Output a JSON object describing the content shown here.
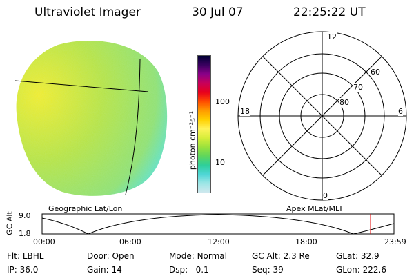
{
  "header": {
    "title": "Ultraviolet Imager",
    "date": "30 Jul 07",
    "time": "22:25:22 UT"
  },
  "colorbar": {
    "unit": "photon cm⁻²s⁻¹",
    "ticks": [
      {
        "label": "100",
        "value": 100
      },
      {
        "label": "10",
        "value": 10
      }
    ],
    "colors": [
      "#cfe8ee",
      "#9ee6e6",
      "#4fd6d6",
      "#2ecf9a",
      "#5fd65c",
      "#9be23c",
      "#d7ee3a",
      "#fff35a",
      "#ffd000",
      "#ff9a00",
      "#ff4a00",
      "#e8001c",
      "#c8005a",
      "#8a0088",
      "#3a0060",
      "#000033"
    ]
  },
  "left_panel": {
    "label": "Geographic Lat/Lon",
    "gradient": {
      "bright": "#f2ec2a",
      "mid": "#b7e342",
      "dim": "#8fe070",
      "edge": "#55e0d8"
    }
  },
  "polar_plot": {
    "label": "Apex MLat/MLT",
    "hour_labels": {
      "top": "12",
      "bottom": "0",
      "left": "18",
      "right": "6"
    },
    "lat_labels": [
      "60",
      "70",
      "80"
    ]
  },
  "timeline": {
    "ylabel": "GC Alt",
    "y_ticks": [
      "9.0",
      "1.8"
    ],
    "x_ticks": [
      "00:00",
      "06:00",
      "12:00",
      "18:00",
      "23:59"
    ],
    "marker_color": "#e00000",
    "marker_time": "22:25"
  },
  "info": {
    "filter_label": "Flt:",
    "filter_value": "LBHL",
    "door_label": "Door:",
    "door_value": "Open",
    "mode_label": "Mode:",
    "mode_value": "Normal",
    "gcalt_label": "GC Alt:",
    "gcalt_value": "2.3 Re",
    "glat_label": "GLat:",
    "glat_value": "32.9",
    "ip_label": "IP:",
    "ip_value": "36.0",
    "gain_label": "Gain:",
    "gain_value": "14",
    "dsp_label": "Dsp:",
    "dsp_value": "0.1",
    "seq_label": "Seq:",
    "seq_value": "39",
    "glon_label": "GLon:",
    "glon_value": "222.6"
  }
}
